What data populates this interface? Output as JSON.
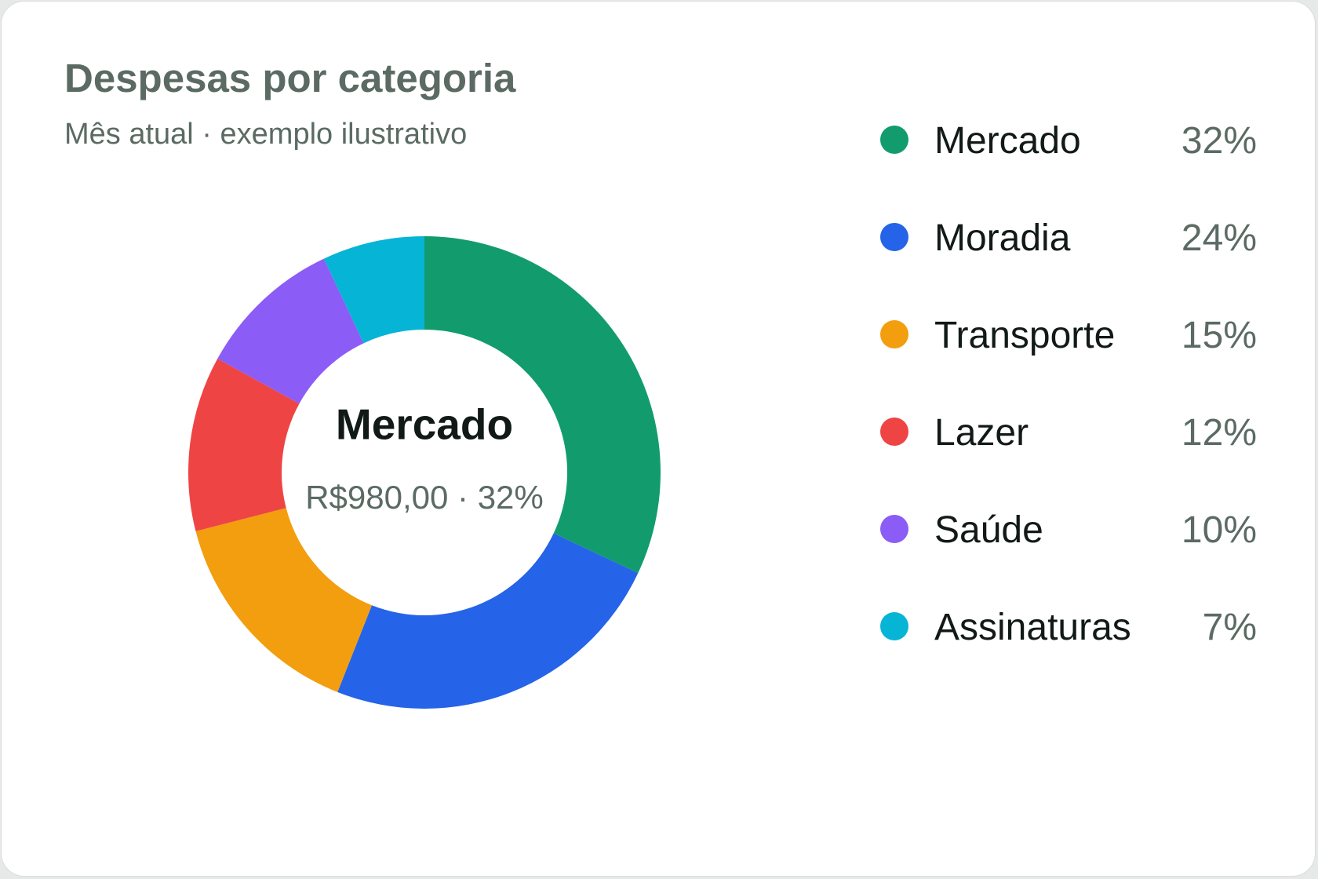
{
  "header": {
    "title": "Despesas por categoria",
    "subtitle": "Mês atual · exemplo ilustrativo"
  },
  "center": {
    "label": "Mercado",
    "detail": "R$980,00 · 32%"
  },
  "chart_data": {
    "type": "pie",
    "donut": true,
    "start_angle_deg": 0,
    "direction": "clockwise",
    "categories": [
      "Mercado",
      "Moradia",
      "Transporte",
      "Lazer",
      "Saúde",
      "Assinaturas"
    ],
    "values": [
      32,
      24,
      15,
      12,
      10,
      7
    ],
    "value_labels": [
      "32%",
      "24%",
      "15%",
      "12%",
      "10%",
      "7%"
    ],
    "colors": [
      "#129c6e",
      "#2563e8",
      "#f29e0e",
      "#ef4444",
      "#8b5cf6",
      "#06b4d6"
    ],
    "legend_position": "right"
  }
}
